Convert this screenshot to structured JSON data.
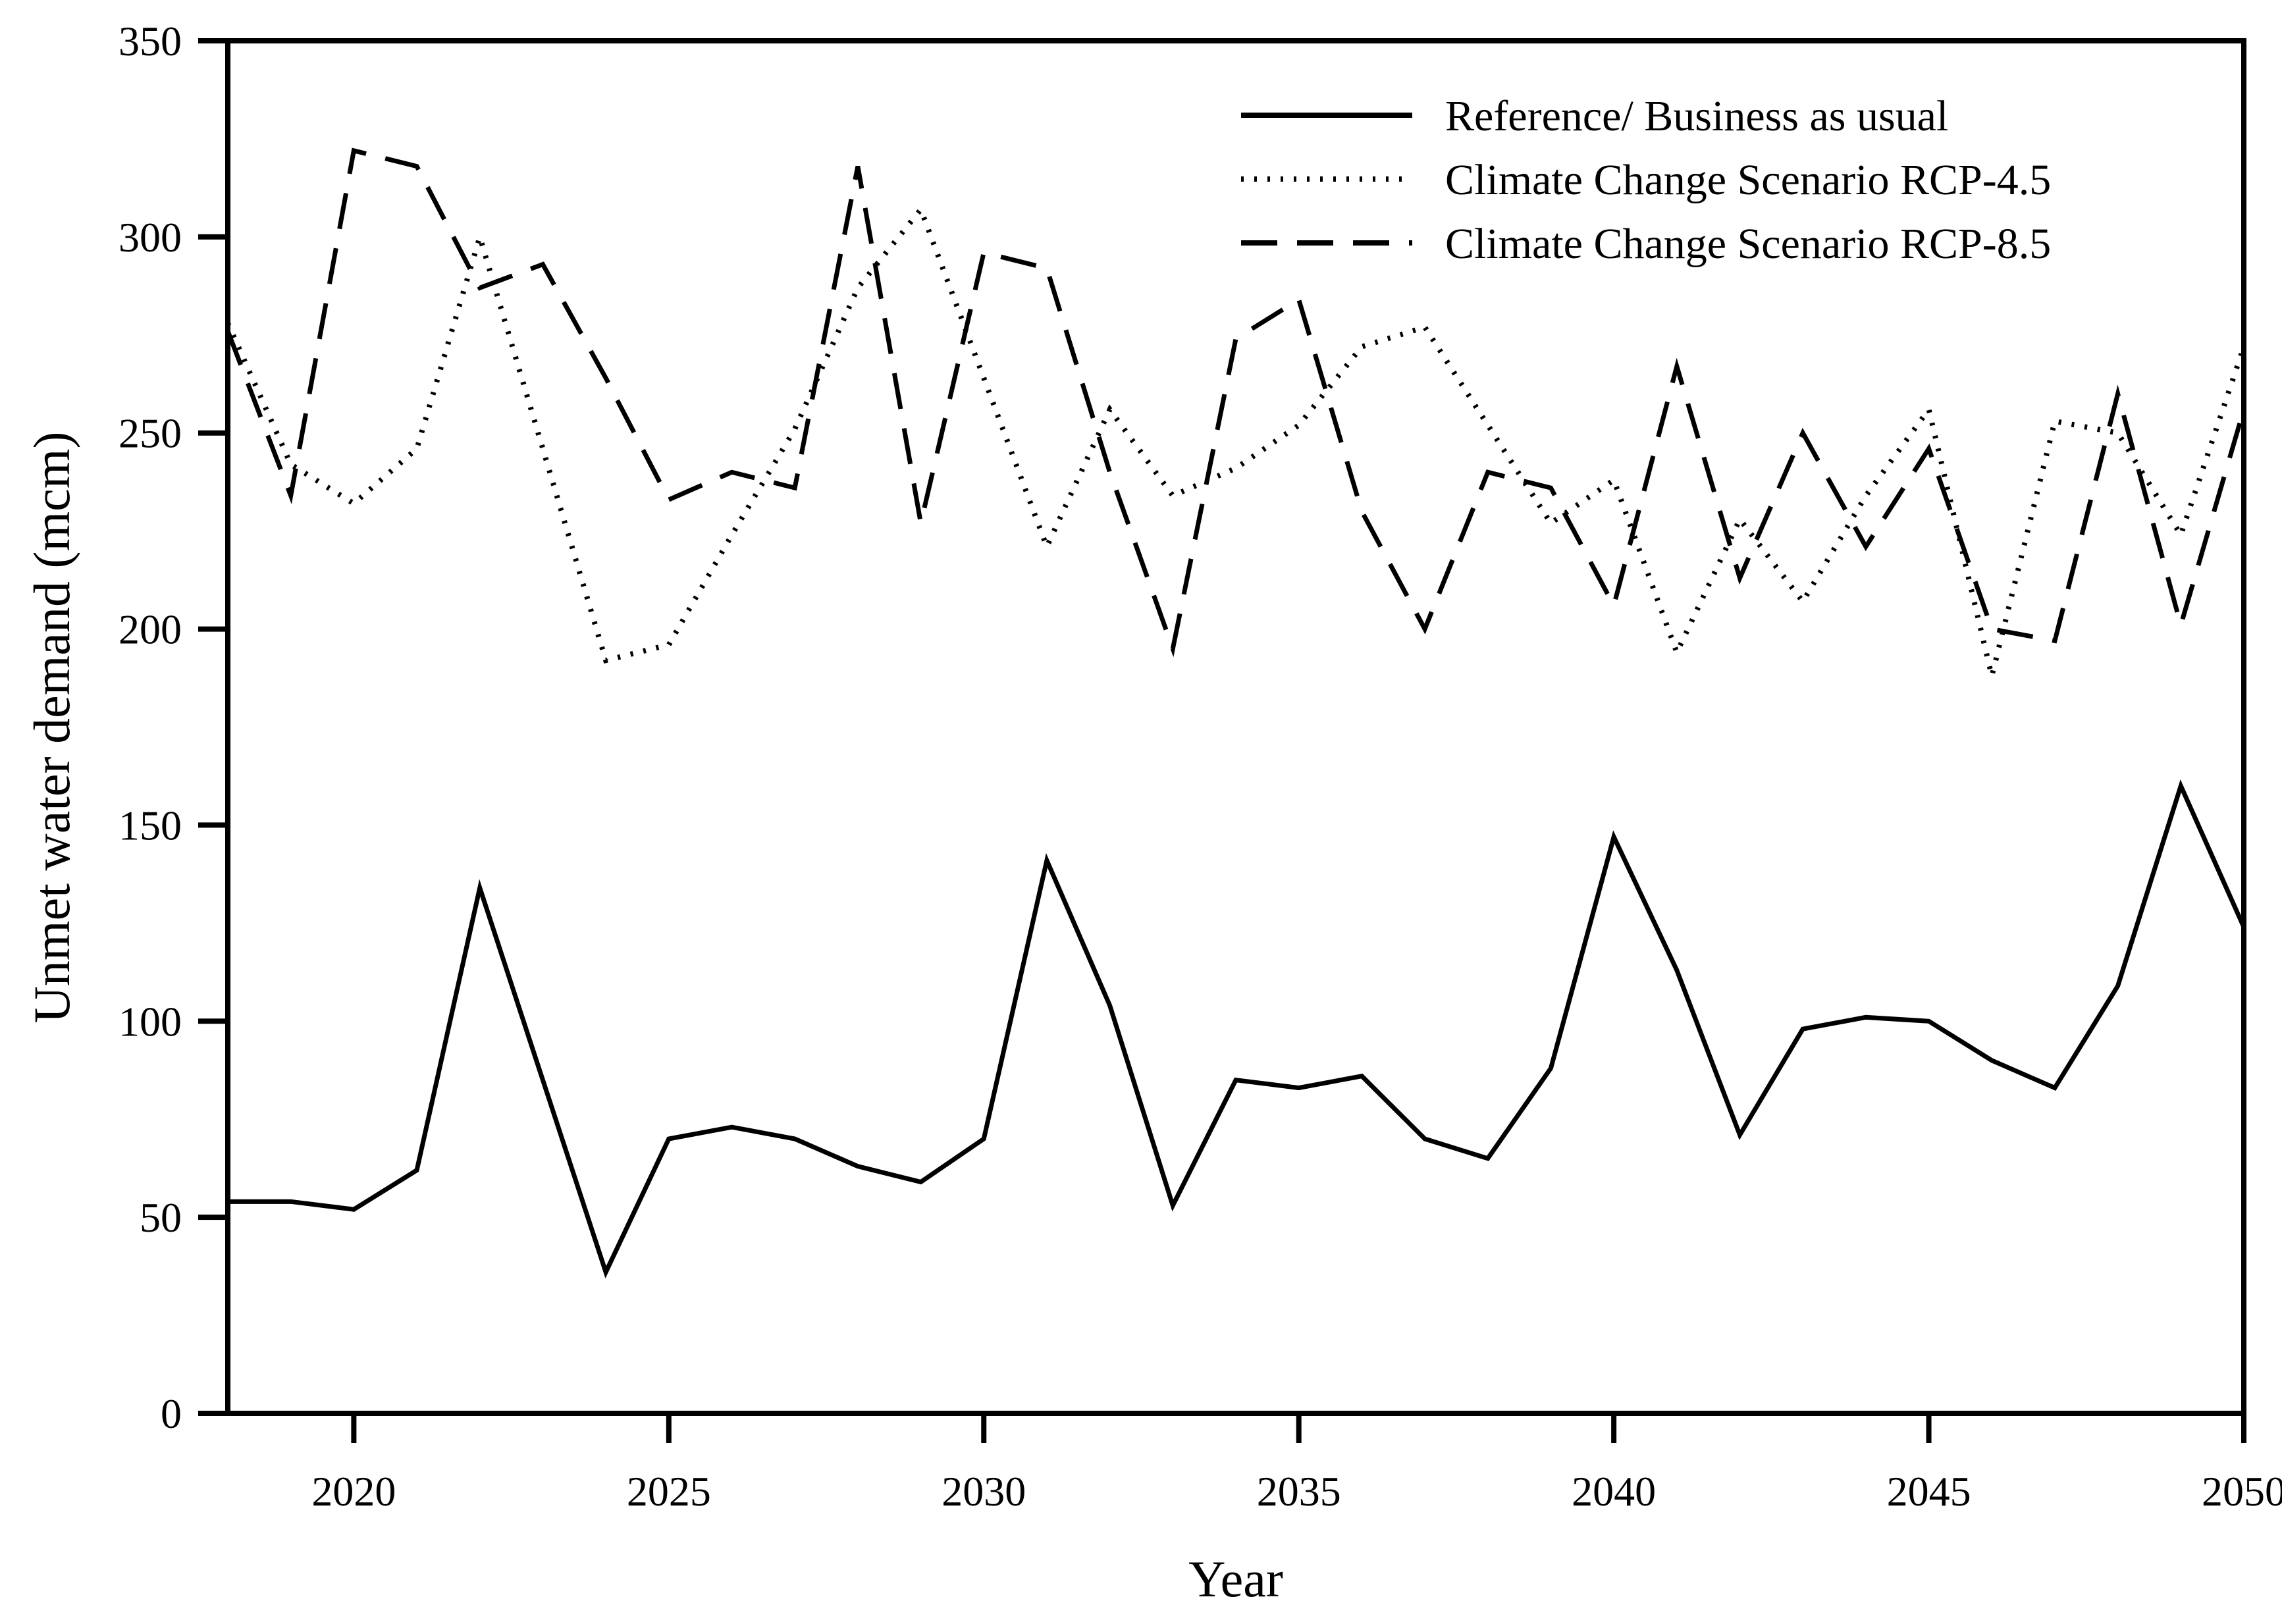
{
  "chart_data": {
    "type": "line",
    "title": "",
    "xlabel": "Year",
    "ylabel": "Unmet water demand (mcm)",
    "x_range": [
      2018,
      2050
    ],
    "y_range": [
      0,
      350
    ],
    "x_ticks": [
      2020,
      2025,
      2030,
      2035,
      2040,
      2045,
      2050
    ],
    "y_ticks": [
      0,
      50,
      100,
      150,
      200,
      250,
      300,
      350
    ],
    "grid": "off",
    "frame": "full-box",
    "legend_position": "top-right-inside",
    "line_color": "#000000",
    "background_color": "#ffffff",
    "x": [
      2018,
      2019,
      2020,
      2021,
      2022,
      2023,
      2024,
      2025,
      2026,
      2027,
      2028,
      2029,
      2030,
      2031,
      2032,
      2033,
      2034,
      2035,
      2036,
      2037,
      2038,
      2039,
      2040,
      2041,
      2042,
      2043,
      2044,
      2045,
      2046,
      2047,
      2048,
      2049,
      2050
    ],
    "series": [
      {
        "name": "Reference/ Business as usual",
        "style": "solid",
        "values": [
          54,
          54,
          52,
          62,
          134,
          85,
          36,
          70,
          73,
          70,
          63,
          59,
          70,
          141,
          104,
          53,
          85,
          83,
          86,
          70,
          65,
          88,
          147,
          113,
          71,
          98,
          101,
          100,
          90,
          83,
          109,
          160,
          124
        ]
      },
      {
        "name": "Climate Change Scenario RCP-4.5",
        "style": "dotted",
        "values": [
          278,
          242,
          232,
          246,
          300,
          246,
          192,
          196,
          224,
          251,
          287,
          307,
          264,
          221,
          256,
          234,
          241,
          252,
          272,
          277,
          252,
          227,
          238,
          194,
          228,
          207,
          234,
          256,
          188,
          253,
          250,
          224,
          272
        ]
      },
      {
        "name": "Climate Change Scenario RCP-8.5",
        "style": "dashed",
        "values": [
          276,
          234,
          322,
          318,
          287,
          293,
          264,
          233,
          240,
          236,
          318,
          227,
          296,
          292,
          240,
          195,
          274,
          284,
          230,
          200,
          240,
          236,
          206,
          267,
          213,
          250,
          221,
          246,
          200,
          197,
          260,
          201,
          256
        ]
      }
    ]
  }
}
